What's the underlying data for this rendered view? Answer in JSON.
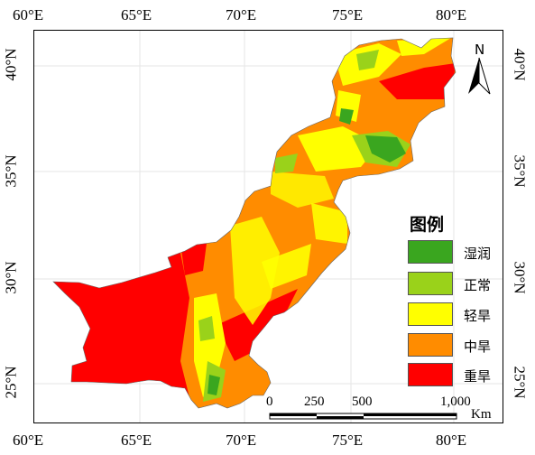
{
  "axes": {
    "lon_top": [
      "60°E",
      "65°E",
      "70°E",
      "75°E",
      "80°E"
    ],
    "lon_bottom": [
      "60°E",
      "65°E",
      "70°E",
      "75°E",
      "80°E"
    ],
    "lat_left": [
      "40°N",
      "35°N",
      "30°N",
      "25°N"
    ],
    "lat_right": [
      "40°N",
      "35°N",
      "30°N",
      "25°N"
    ]
  },
  "north_arrow": {
    "label": "N",
    "icon": "north-arrow-icon"
  },
  "legend": {
    "title": "图例",
    "items": [
      {
        "label": "湿润",
        "color": "#3aa61f"
      },
      {
        "label": "正常",
        "color": "#9ad21a"
      },
      {
        "label": "轻旱",
        "color": "#ffff00"
      },
      {
        "label": "中旱",
        "color": "#ff8c00"
      },
      {
        "label": "重旱",
        "color": "#ff0000"
      }
    ]
  },
  "scale_bar": {
    "ticks": [
      "0",
      "250",
      "500",
      "1,000"
    ],
    "unit": "Km"
  }
}
